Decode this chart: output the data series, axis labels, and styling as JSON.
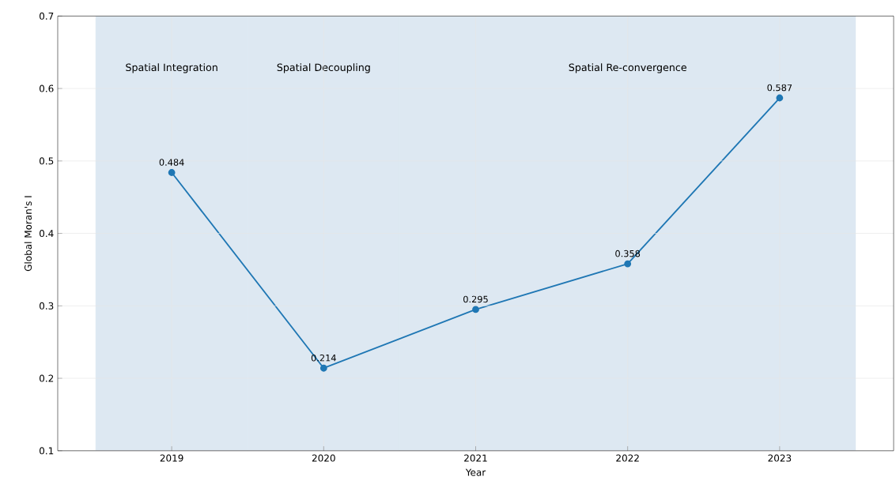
{
  "chart_data": {
    "type": "line",
    "xlabel": "Year",
    "ylabel": "Global Moran's I",
    "x": [
      2019,
      2020,
      2021,
      2022,
      2023
    ],
    "values": [
      0.484,
      0.214,
      0.295,
      0.358,
      0.587
    ],
    "color": "#1f77b4",
    "marker": "circle",
    "line_style": "solid",
    "data_labels": true,
    "xlim": [
      2018.25,
      2023.75
    ],
    "xticks": [
      2019,
      2020,
      2021,
      2022,
      2023
    ],
    "ylim": [
      0.1,
      0.7
    ],
    "yticks": [
      0.1,
      0.2,
      0.3,
      0.4,
      0.5,
      0.6,
      0.7
    ],
    "grid": true,
    "bands": [
      {
        "axis": "x",
        "from": 2018.5,
        "to": 2019.5,
        "label": "Spatial Integration",
        "color": "#dde8f2"
      },
      {
        "axis": "x",
        "from": 2019.5,
        "to": 2020.5,
        "label": "Spatial Decoupling",
        "color": "#dde8f2"
      },
      {
        "axis": "x",
        "from": 2020.5,
        "to": 2023.5,
        "label": "Spatial Re-convergence",
        "color": "#dde8f2"
      }
    ]
  }
}
